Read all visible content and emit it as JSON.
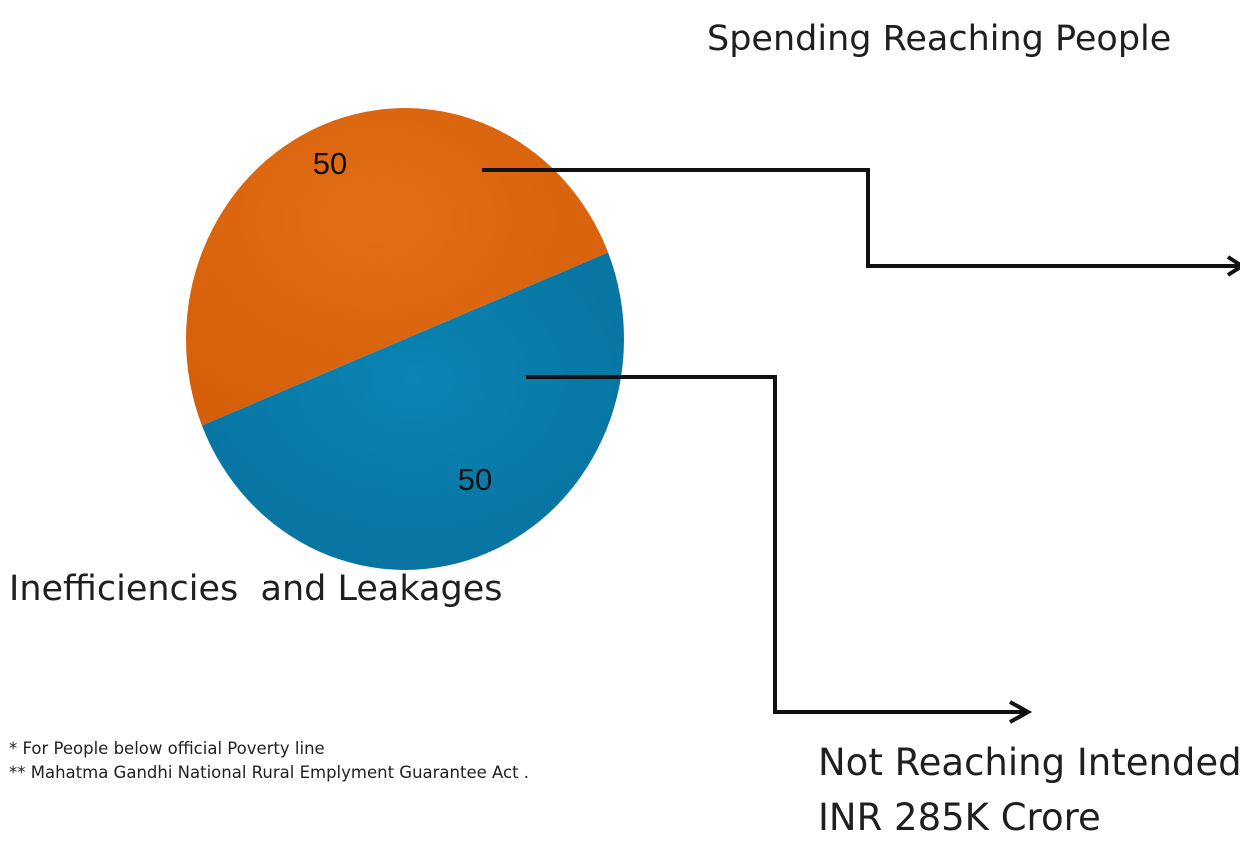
{
  "heading": "Spending Reaching People",
  "footnotes": [
    "* For People below official Poverty line",
    "** Mahatma Gandhi National Rural Emplyment Guarantee Act ."
  ],
  "annotations": {
    "inefficiencies": "Inefficiencies  and Leakages",
    "bottom_line1": "Not Reaching Intended",
    "bottom_line2": "INR 285K Crore"
  },
  "colors": {
    "orange_slice": "#DB620A",
    "blue_slice": "#0878A8",
    "connector": "#111111"
  },
  "chart_data": {
    "type": "pie",
    "title": "",
    "slices": [
      {
        "label": "",
        "value": 50,
        "color": "#DB620A"
      },
      {
        "label": "",
        "value": 50,
        "color": "#0878A8"
      }
    ]
  }
}
